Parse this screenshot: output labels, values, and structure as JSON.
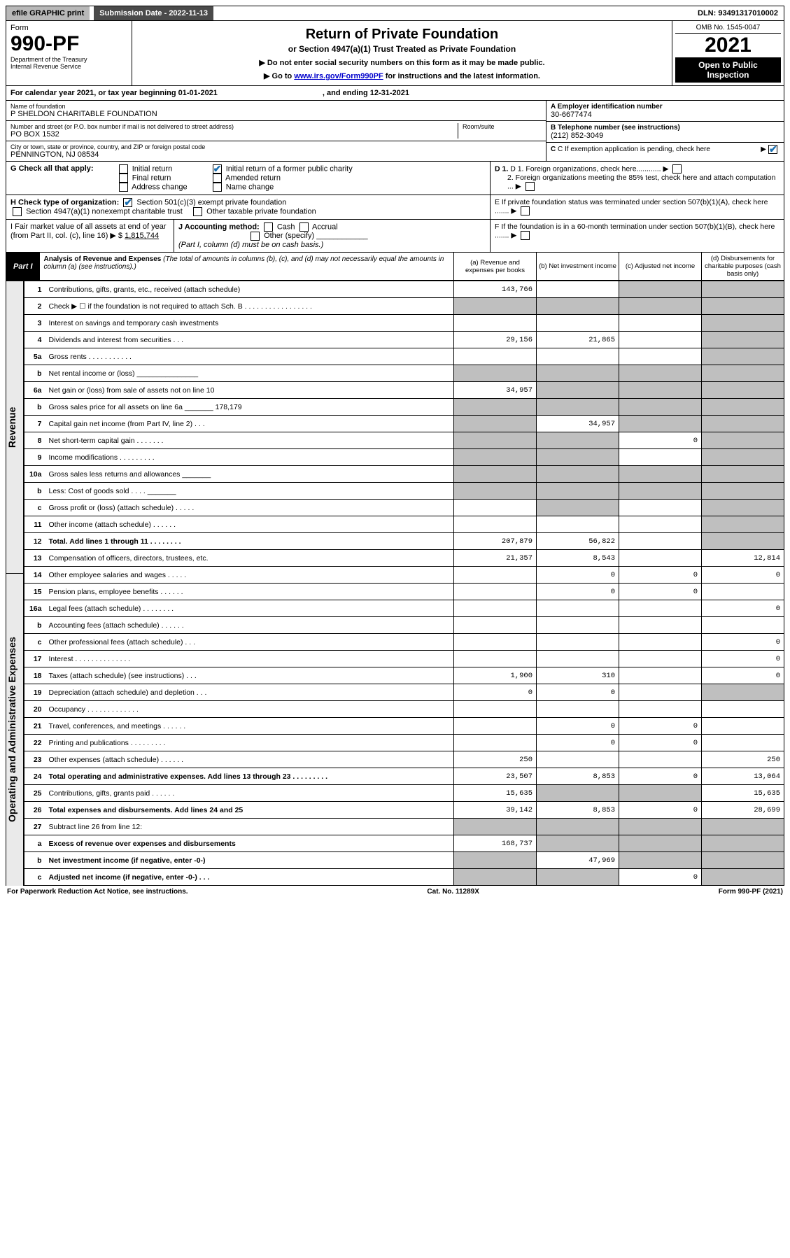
{
  "topbar": {
    "efile": "efile GRAPHIC print",
    "submission_label": "Submission Date - 2022-11-13",
    "dln": "DLN: 93491317010002"
  },
  "header": {
    "form_word": "Form",
    "form_number": "990-PF",
    "dept1": "Department of the Treasury",
    "dept2": "Internal Revenue Service",
    "title": "Return of Private Foundation",
    "subtitle": "or Section 4947(a)(1) Trust Treated as Private Foundation",
    "note1": "▶ Do not enter social security numbers on this form as it may be made public.",
    "note2_pre": "▶ Go to ",
    "note2_link": "www.irs.gov/Form990PF",
    "note2_post": " for instructions and the latest information.",
    "omb": "OMB No. 1545-0047",
    "year": "2021",
    "open": "Open to Public Inspection"
  },
  "calendar": {
    "text_a": "For calendar year 2021, or tax year beginning 01-01-2021",
    "text_b": ", and ending 12-31-2021"
  },
  "entity": {
    "name_label": "Name of foundation",
    "name": "P SHELDON CHARITABLE FOUNDATION",
    "addr_label": "Number and street (or P.O. box number if mail is not delivered to street address)",
    "addr": "PO BOX 1532",
    "room_label": "Room/suite",
    "city_label": "City or town, state or province, country, and ZIP or foreign postal code",
    "city": "PENNINGTON, NJ  08534",
    "a_label": "A Employer identification number",
    "a_val": "30-6677474",
    "b_label": "B Telephone number (see instructions)",
    "b_val": "(212) 852-3049",
    "c_label": "C If exemption application is pending, check here",
    "c_checked": true
  },
  "checks": {
    "g_label": "G Check all that apply:",
    "g_opts": [
      "Initial return",
      "Final return",
      "Address change",
      "Initial return of a former public charity",
      "Amended return",
      "Name change"
    ],
    "g_checked_idx": 3,
    "h_label": "H Check type of organization:",
    "h_opt1": "Section 501(c)(3) exempt private foundation",
    "h_opt2": "Section 4947(a)(1) nonexempt charitable trust",
    "h_opt3": "Other taxable private foundation",
    "i_label": "I Fair market value of all assets at end of year (from Part II, col. (c), line 16) ▶ $",
    "i_val": "1,815,744",
    "j_label": "J Accounting method:",
    "j_opts": [
      "Cash",
      "Accrual",
      "Other (specify)"
    ],
    "j_note": "(Part I, column (d) must be on cash basis.)",
    "d1": "D 1. Foreign organizations, check here............",
    "d2": "2. Foreign organizations meeting the 85% test, check here and attach computation ...",
    "e": "E  If private foundation status was terminated under section 507(b)(1)(A), check here .......",
    "f": "F  If the foundation is in a 60-month termination under section 507(b)(1)(B), check here .......",
    "arrow": "▶"
  },
  "part1": {
    "label": "Part I",
    "title": "Analysis of Revenue and Expenses",
    "title_note": "(The total of amounts in columns (b), (c), and (d) may not necessarily equal the amounts in column (a) (see instructions).)",
    "col_a": "(a)   Revenue and expenses per books",
    "col_b": "(b)   Net investment income",
    "col_c": "(c)   Adjusted net income",
    "col_d": "(d)   Disbursements for charitable purposes (cash basis only)"
  },
  "side": {
    "revenue": "Revenue",
    "expenses": "Operating and Administrative Expenses"
  },
  "rows": [
    {
      "n": "1",
      "desc": "Contributions, gifts, grants, etc., received (attach schedule)",
      "a": "143,766",
      "b": "",
      "c": "shade",
      "d": "shade"
    },
    {
      "n": "2",
      "desc": "Check ▶ ☐ if the foundation is not required to attach Sch. B   .  .  .  .  .  .  .  .  .  .  .  .  .  .  .  .  .",
      "a": "shade",
      "b": "shade",
      "c": "shade",
      "d": "shade"
    },
    {
      "n": "3",
      "desc": "Interest on savings and temporary cash investments",
      "a": "",
      "b": "",
      "c": "",
      "d": "shade"
    },
    {
      "n": "4",
      "desc": "Dividends and interest from securities   .   .   .",
      "a": "29,156",
      "b": "21,865",
      "c": "",
      "d": "shade"
    },
    {
      "n": "5a",
      "desc": "Gross rents   .   .   .   .   .   .   .   .   .   .   .",
      "a": "",
      "b": "",
      "c": "",
      "d": "shade"
    },
    {
      "n": "b",
      "desc": "Net rental income or (loss)  _______________",
      "a": "shade",
      "b": "shade",
      "c": "shade",
      "d": "shade"
    },
    {
      "n": "6a",
      "desc": "Net gain or (loss) from sale of assets not on line 10",
      "a": "34,957",
      "b": "shade",
      "c": "shade",
      "d": "shade"
    },
    {
      "n": "b",
      "desc": "Gross sales price for all assets on line 6a _______ 178,179",
      "a": "shade",
      "b": "shade",
      "c": "shade",
      "d": "shade"
    },
    {
      "n": "7",
      "desc": "Capital gain net income (from Part IV, line 2)   .   .   .",
      "a": "shade",
      "b": "34,957",
      "c": "shade",
      "d": "shade"
    },
    {
      "n": "8",
      "desc": "Net short-term capital gain  .   .   .   .   .   .   .",
      "a": "shade",
      "b": "shade",
      "c": "0",
      "d": "shade"
    },
    {
      "n": "9",
      "desc": "Income modifications  .   .   .   .   .   .   .   .   .",
      "a": "shade",
      "b": "shade",
      "c": "",
      "d": "shade"
    },
    {
      "n": "10a",
      "desc": "Gross sales less returns and allowances  _______",
      "a": "shade",
      "b": "shade",
      "c": "shade",
      "d": "shade"
    },
    {
      "n": "b",
      "desc": "Less: Cost of goods sold   .   .   .   .  _______",
      "a": "shade",
      "b": "shade",
      "c": "shade",
      "d": "shade"
    },
    {
      "n": "c",
      "desc": "Gross profit or (loss) (attach schedule)   .   .   .   .   .",
      "a": "",
      "b": "shade",
      "c": "",
      "d": "shade"
    },
    {
      "n": "11",
      "desc": "Other income (attach schedule)   .   .   .   .   .   .",
      "a": "",
      "b": "",
      "c": "",
      "d": "shade"
    },
    {
      "n": "12",
      "desc": "Total. Add lines 1 through 11   .   .   .   .   .   .   .   .",
      "bold": true,
      "a": "207,879",
      "b": "56,822",
      "c": "",
      "d": "shade"
    },
    {
      "n": "13",
      "desc": "Compensation of officers, directors, trustees, etc.",
      "a": "21,357",
      "b": "8,543",
      "c": "",
      "d": "12,814"
    },
    {
      "n": "14",
      "desc": "Other employee salaries and wages   .   .   .   .   .",
      "a": "",
      "b": "0",
      "c": "0",
      "d": "0"
    },
    {
      "n": "15",
      "desc": "Pension plans, employee benefits  .   .   .   .   .   .",
      "a": "",
      "b": "0",
      "c": "0",
      "d": ""
    },
    {
      "n": "16a",
      "desc": "Legal fees (attach schedule)  .   .   .   .   .   .   .   .",
      "a": "",
      "b": "",
      "c": "",
      "d": "0"
    },
    {
      "n": "b",
      "desc": "Accounting fees (attach schedule)  .   .   .   .   .   .",
      "a": "",
      "b": "",
      "c": "",
      "d": ""
    },
    {
      "n": "c",
      "desc": "Other professional fees (attach schedule)   .   .   .",
      "a": "",
      "b": "",
      "c": "",
      "d": "0"
    },
    {
      "n": "17",
      "desc": "Interest  .   .   .   .   .   .   .   .   .   .   .   .   .   .",
      "a": "",
      "b": "",
      "c": "",
      "d": "0"
    },
    {
      "n": "18",
      "desc": "Taxes (attach schedule) (see instructions)   .   .   .",
      "a": "1,900",
      "b": "310",
      "c": "",
      "d": "0"
    },
    {
      "n": "19",
      "desc": "Depreciation (attach schedule) and depletion   .   .   .",
      "a": "0",
      "b": "0",
      "c": "",
      "d": "shade"
    },
    {
      "n": "20",
      "desc": "Occupancy  .   .   .   .   .   .   .   .   .   .   .   .   .",
      "a": "",
      "b": "",
      "c": "",
      "d": ""
    },
    {
      "n": "21",
      "desc": "Travel, conferences, and meetings  .   .   .   .   .   .",
      "a": "",
      "b": "0",
      "c": "0",
      "d": ""
    },
    {
      "n": "22",
      "desc": "Printing and publications  .   .   .   .   .   .   .   .   .",
      "a": "",
      "b": "0",
      "c": "0",
      "d": ""
    },
    {
      "n": "23",
      "desc": "Other expenses (attach schedule)  .   .   .   .   .   .",
      "a": "250",
      "b": "",
      "c": "",
      "d": "250"
    },
    {
      "n": "24",
      "desc": "Total operating and administrative expenses. Add lines 13 through 23   .   .   .   .   .   .   .   .   .",
      "bold": true,
      "a": "23,507",
      "b": "8,853",
      "c": "0",
      "d": "13,064"
    },
    {
      "n": "25",
      "desc": "Contributions, gifts, grants paid   .   .   .   .   .   .",
      "a": "15,635",
      "b": "shade",
      "c": "shade",
      "d": "15,635"
    },
    {
      "n": "26",
      "desc": "Total expenses and disbursements. Add lines 24 and 25",
      "bold": true,
      "a": "39,142",
      "b": "8,853",
      "c": "0",
      "d": "28,699"
    },
    {
      "n": "27",
      "desc": "Subtract line 26 from line 12:",
      "a": "shade",
      "b": "shade",
      "c": "shade",
      "d": "shade"
    },
    {
      "n": "a",
      "desc": "Excess of revenue over expenses and disbursements",
      "bold": true,
      "a": "168,737",
      "b": "shade",
      "c": "shade",
      "d": "shade"
    },
    {
      "n": "b",
      "desc": "Net investment income (if negative, enter -0-)",
      "bold": true,
      "a": "shade",
      "b": "47,969",
      "c": "shade",
      "d": "shade"
    },
    {
      "n": "c",
      "desc": "Adjusted net income (if negative, enter -0-)   .   .   .",
      "bold": true,
      "a": "shade",
      "b": "shade",
      "c": "0",
      "d": "shade"
    }
  ],
  "footer": {
    "left": "For Paperwork Reduction Act Notice, see instructions.",
    "center": "Cat. No. 11289X",
    "right": "Form 990-PF (2021)"
  },
  "colors": {
    "shade": "#bfbfbf",
    "topgrey": "#b8b8b8",
    "topdark": "#4a4a4a",
    "link": "#0000cc",
    "check_green": "#1a7a3a"
  }
}
